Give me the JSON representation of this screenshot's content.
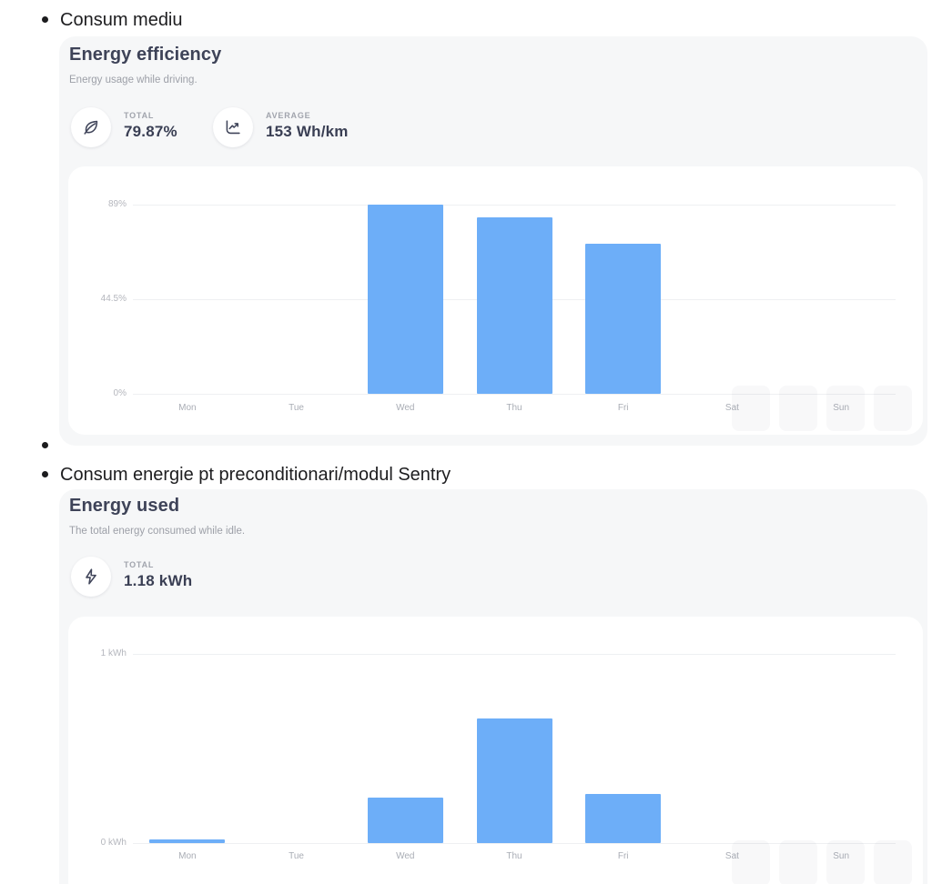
{
  "page": {
    "bullets": [
      "Consum mediu",
      "",
      "Consum energie pt preconditionari/modul Sentry"
    ]
  },
  "colors": {
    "bar_blue": "#6daef8",
    "card_background": "#f6f7f8",
    "panel_background": "#ffffff",
    "title_text": "#3e4358",
    "muted_text": "#9da0a8"
  },
  "cards": [
    {
      "title": "Energy efficiency",
      "subtitle": "Energy usage while driving.",
      "stats": [
        {
          "icon": "leaf-icon",
          "label": "TOTAL",
          "value": "79.87%"
        },
        {
          "icon": "line-chart-icon",
          "label": "AVERAGE",
          "value": "153 Wh/km"
        }
      ]
    },
    {
      "title": "Energy used",
      "subtitle": "The total energy consumed while idle.",
      "stats": [
        {
          "icon": "lightning-icon",
          "label": "TOTAL",
          "value": "1.18 kWh"
        }
      ]
    }
  ],
  "chart_data": [
    {
      "type": "bar",
      "title": "Energy efficiency",
      "xlabel": "",
      "ylabel": "",
      "unit": "%",
      "categories": [
        "Mon",
        "Tue",
        "Wed",
        "Thu",
        "Fri",
        "Sat",
        "Sun"
      ],
      "values": [
        null,
        null,
        89,
        83,
        70.5,
        null,
        null
      ],
      "yticks": [
        {
          "label": "89%",
          "value": 89
        },
        {
          "label": "44.5%",
          "value": 44.5
        },
        {
          "label": "0%",
          "value": 0
        }
      ],
      "ylim": [
        0,
        89
      ],
      "grid": true,
      "legend": false,
      "bar_color": "#6daef8"
    },
    {
      "type": "bar",
      "title": "Energy used",
      "xlabel": "",
      "ylabel": "",
      "unit": "kWh",
      "categories": [
        "Mon",
        "Tue",
        "Wed",
        "Thu",
        "Fri",
        "Sat",
        "Sun"
      ],
      "values": [
        0.02,
        null,
        0.24,
        0.66,
        0.26,
        null,
        null
      ],
      "yticks": [
        {
          "label": "1 kWh",
          "value": 1
        },
        {
          "label": "0 kWh",
          "value": 0
        }
      ],
      "ylim": [
        0,
        1
      ],
      "grid": true,
      "legend": false,
      "bar_color": "#6daef8"
    }
  ]
}
